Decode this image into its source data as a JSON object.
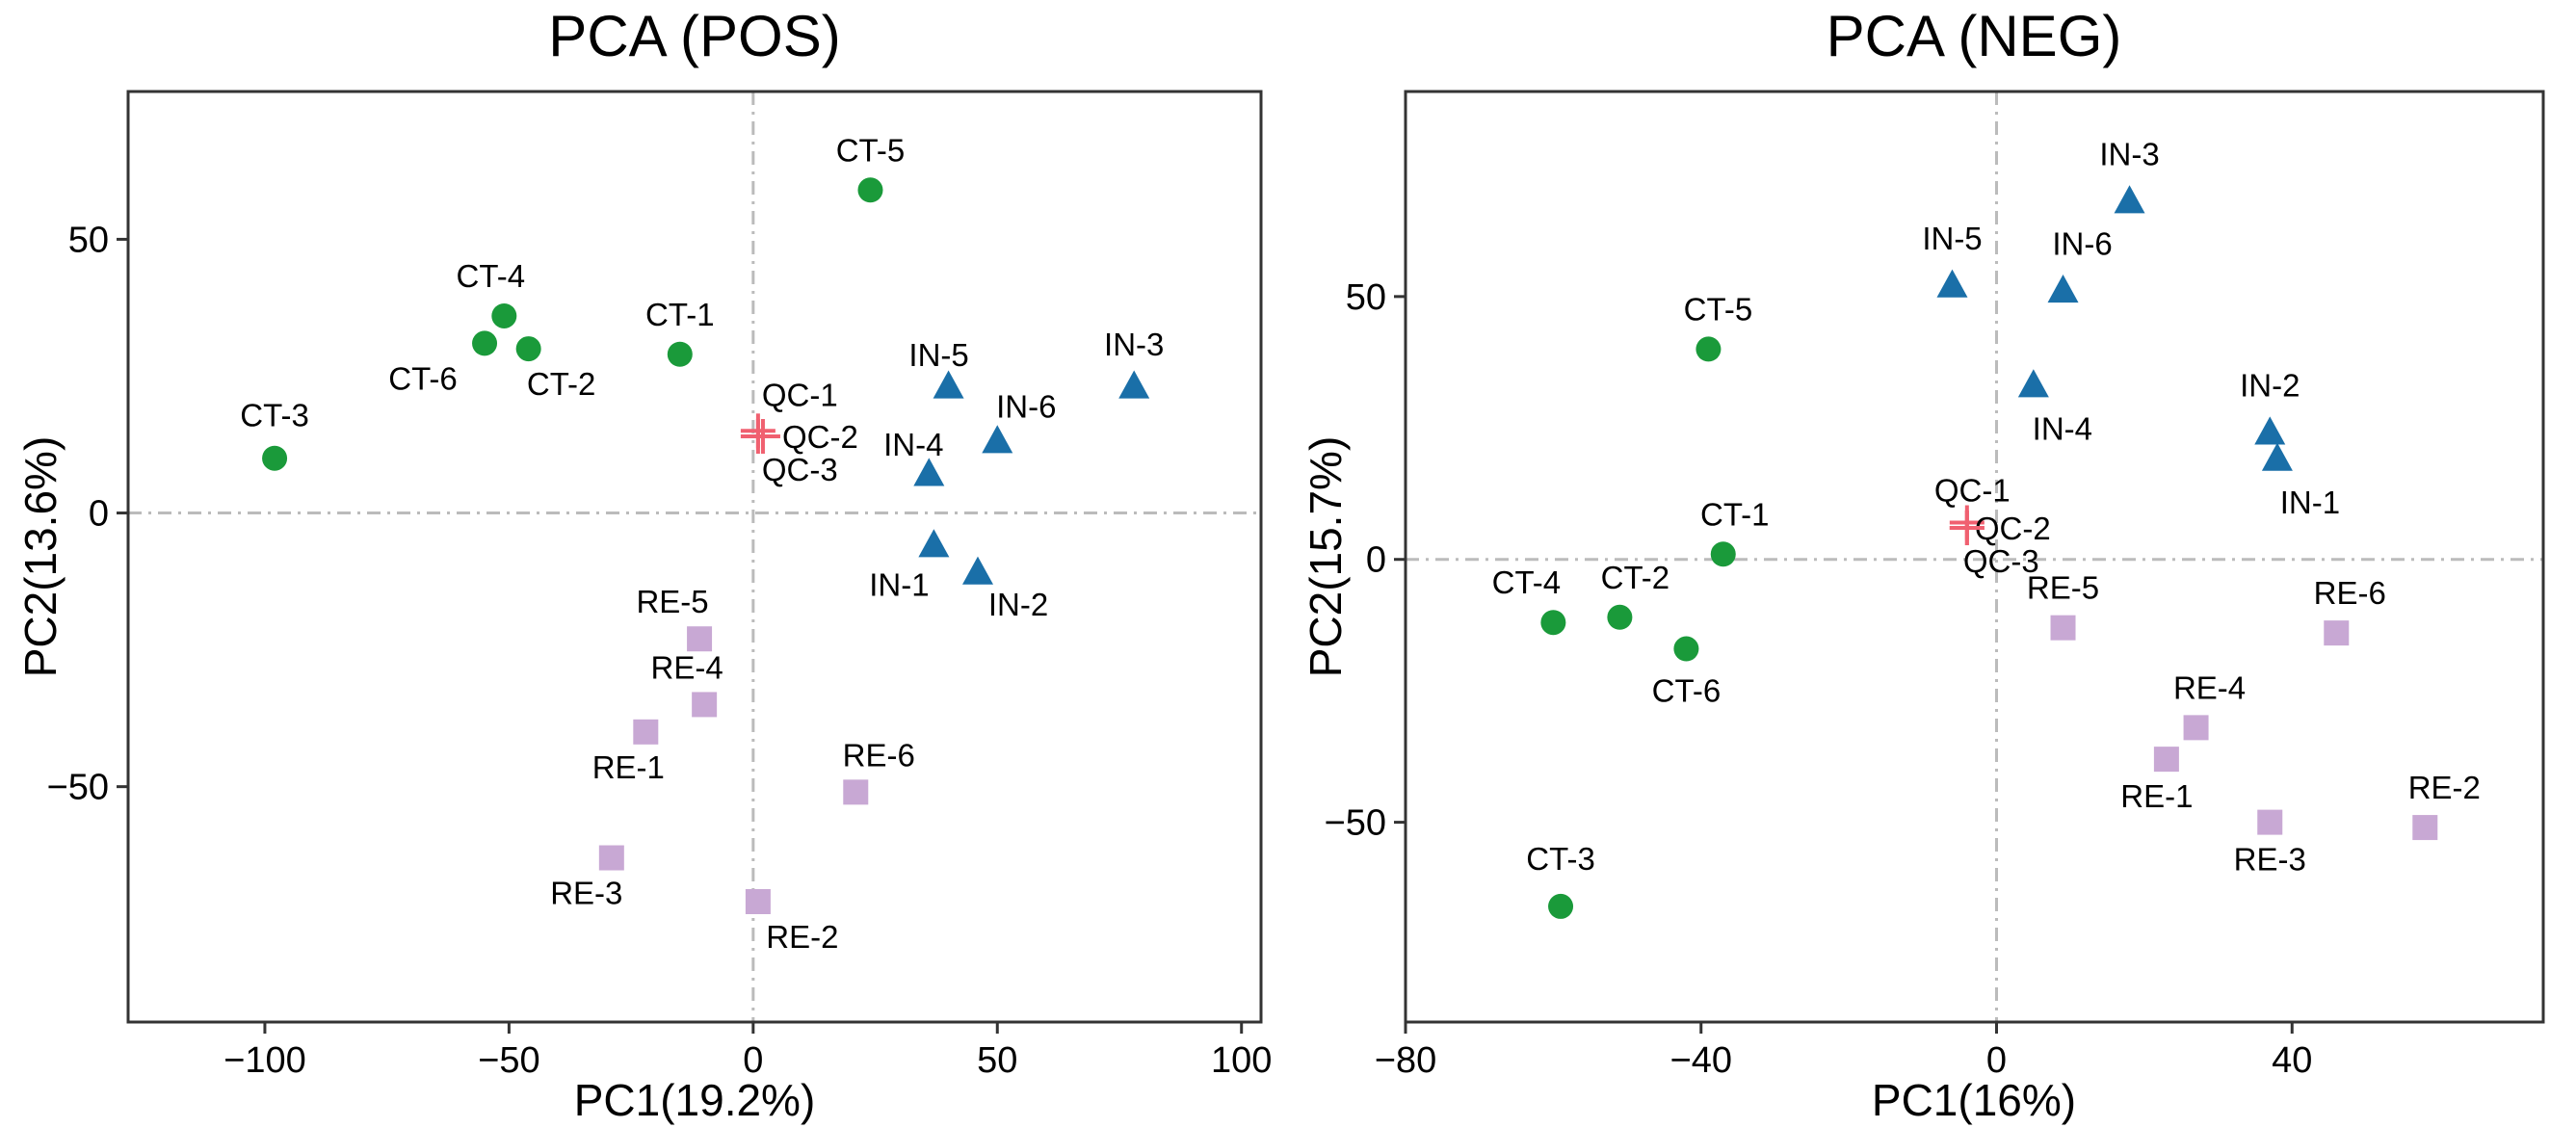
{
  "chart_data": [
    {
      "type": "scatter",
      "title": "PCA (POS)",
      "xlabel": "PC1(19.2%)",
      "ylabel": "PC2(13.6%)",
      "xlim": [
        -128,
        104
      ],
      "ylim": [
        -93,
        77
      ],
      "xticks": [
        -100,
        -50,
        0,
        50,
        100
      ],
      "yticks": [
        -50,
        0,
        50
      ],
      "reference_lines": {
        "x": 0,
        "y": 0,
        "style": "dashed"
      },
      "grid": false,
      "legend": "none",
      "series": [
        {
          "marker": "circle",
          "color": "#1a9a3a",
          "points": [
            {
              "label": "CT-1",
              "x": -15,
              "y": 29
            },
            {
              "label": "CT-2",
              "x": -46,
              "y": 30
            },
            {
              "label": "CT-3",
              "x": -98,
              "y": 10
            },
            {
              "label": "CT-4",
              "x": -51,
              "y": 36
            },
            {
              "label": "CT-5",
              "x": 24,
              "y": 59
            },
            {
              "label": "CT-6",
              "x": -55,
              "y": 31
            }
          ]
        },
        {
          "marker": "triangle",
          "color": "#1a6fa8",
          "points": [
            {
              "label": "IN-1",
              "x": 37,
              "y": -6
            },
            {
              "label": "IN-2",
              "x": 46,
              "y": -11
            },
            {
              "label": "IN-3",
              "x": 78,
              "y": 23
            },
            {
              "label": "IN-4",
              "x": 36,
              "y": 7
            },
            {
              "label": "IN-5",
              "x": 40,
              "y": 23
            },
            {
              "label": "IN-6",
              "x": 50,
              "y": 13
            }
          ]
        },
        {
          "marker": "square",
          "color": "#c8a8d4",
          "points": [
            {
              "label": "RE-1",
              "x": -22,
              "y": -40
            },
            {
              "label": "RE-2",
              "x": 1,
              "y": -71
            },
            {
              "label": "RE-3",
              "x": -29,
              "y": -63
            },
            {
              "label": "RE-4",
              "x": -10,
              "y": -35
            },
            {
              "label": "RE-5",
              "x": -11,
              "y": -23
            },
            {
              "label": "RE-6",
              "x": 21,
              "y": -51
            }
          ]
        },
        {
          "marker": "cross",
          "color": "#f06070",
          "points": [
            {
              "label": "QC-1",
              "x": 1,
              "y": 15
            },
            {
              "label": "QC-2",
              "x": 2,
              "y": 14
            },
            {
              "label": "QC-3",
              "x": 1,
              "y": 14
            }
          ]
        }
      ]
    },
    {
      "type": "scatter",
      "title": "PCA (NEG)",
      "xlabel": "PC1(16%)",
      "ylabel": "PC2(15.7%)",
      "xlim": [
        -80,
        74
      ],
      "ylim": [
        -88,
        89
      ],
      "xticks": [
        -80,
        -40,
        0,
        40
      ],
      "yticks": [
        -50,
        0,
        50
      ],
      "reference_lines": {
        "x": 0,
        "y": 0,
        "style": "dashed"
      },
      "grid": false,
      "legend": "none",
      "series": [
        {
          "marker": "circle",
          "color": "#1a9a3a",
          "points": [
            {
              "label": "CT-1",
              "x": -37,
              "y": 1
            },
            {
              "label": "CT-2",
              "x": -51,
              "y": -11
            },
            {
              "label": "CT-3",
              "x": -59,
              "y": -66
            },
            {
              "label": "CT-4",
              "x": -60,
              "y": -12
            },
            {
              "label": "CT-5",
              "x": -39,
              "y": 40
            },
            {
              "label": "CT-6",
              "x": -42,
              "y": -17
            }
          ]
        },
        {
          "marker": "triangle",
          "color": "#1a6fa8",
          "points": [
            {
              "label": "IN-1",
              "x": 38,
              "y": 19
            },
            {
              "label": "IN-2",
              "x": 37,
              "y": 24
            },
            {
              "label": "IN-3",
              "x": 18,
              "y": 68
            },
            {
              "label": "IN-4",
              "x": 5,
              "y": 33
            },
            {
              "label": "IN-5",
              "x": -6,
              "y": 52
            },
            {
              "label": "IN-6",
              "x": 9,
              "y": 51
            }
          ]
        },
        {
          "marker": "square",
          "color": "#c8a8d4",
          "points": [
            {
              "label": "RE-1",
              "x": 23,
              "y": -38
            },
            {
              "label": "RE-2",
              "x": 58,
              "y": -51
            },
            {
              "label": "RE-3",
              "x": 37,
              "y": -50
            },
            {
              "label": "RE-4",
              "x": 27,
              "y": -32
            },
            {
              "label": "RE-5",
              "x": 9,
              "y": -13
            },
            {
              "label": "RE-6",
              "x": 46,
              "y": -14
            }
          ]
        },
        {
          "marker": "cross",
          "color": "#f06070",
          "points": [
            {
              "label": "QC-1",
              "x": -4,
              "y": 7
            },
            {
              "label": "QC-2",
              "x": -4,
              "y": 6
            },
            {
              "label": "QC-3",
              "x": -4,
              "y": 6
            }
          ]
        }
      ]
    }
  ]
}
